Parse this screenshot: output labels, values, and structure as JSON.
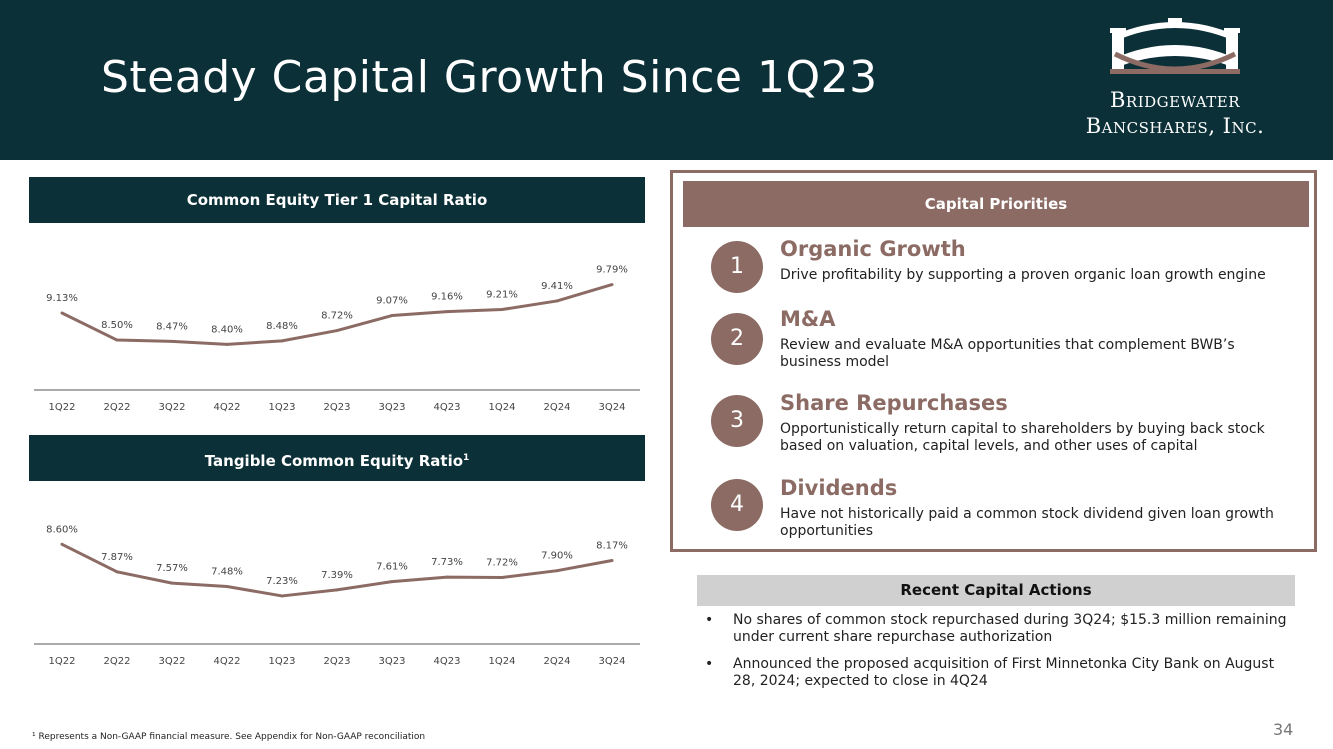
{
  "slide": {
    "title": "Steady Capital Growth Since 1Q23",
    "page_number": "34",
    "footnote": "¹ Represents a Non-GAAP financial measure. See Appendix for Non-GAAP reconciliation"
  },
  "logo": {
    "line1": "Bridgewater",
    "line2": "Bancshares, Inc."
  },
  "colors": {
    "navy": "#0c3038",
    "mauve": "#8b6b64",
    "gray": "#d0d0d0"
  },
  "chart_data": [
    {
      "type": "line",
      "title": "Common Equity Tier 1 Capital Ratio",
      "categories": [
        "1Q22",
        "2Q22",
        "3Q22",
        "4Q22",
        "1Q23",
        "2Q23",
        "3Q23",
        "4Q23",
        "1Q24",
        "2Q24",
        "3Q24"
      ],
      "values": [
        9.13,
        8.5,
        8.47,
        8.4,
        8.48,
        8.72,
        9.07,
        9.16,
        9.21,
        9.41,
        9.79
      ],
      "labels": [
        "9.13%",
        "8.50%",
        "8.47%",
        "8.40%",
        "8.48%",
        "8.72%",
        "9.07%",
        "9.16%",
        "9.21%",
        "9.41%",
        "9.79%"
      ],
      "ylim": [
        7.5,
        10.2
      ],
      "xlabel": "",
      "ylabel": ""
    },
    {
      "type": "line",
      "title": "Tangible Common Equity Ratio",
      "title_superscript": "1",
      "categories": [
        "1Q22",
        "2Q22",
        "3Q22",
        "4Q22",
        "1Q23",
        "2Q23",
        "3Q23",
        "4Q23",
        "1Q24",
        "2Q24",
        "3Q24"
      ],
      "values": [
        8.6,
        7.87,
        7.57,
        7.48,
        7.23,
        7.39,
        7.61,
        7.73,
        7.72,
        7.9,
        8.17
      ],
      "labels": [
        "8.60%",
        "7.87%",
        "7.57%",
        "7.48%",
        "7.23%",
        "7.39%",
        "7.61%",
        "7.73%",
        "7.72%",
        "7.90%",
        "8.17%"
      ],
      "ylim": [
        6.3,
        8.9
      ],
      "xlabel": "",
      "ylabel": ""
    }
  ],
  "capital_priorities": {
    "header": "Capital Priorities",
    "items": [
      {
        "number": "1",
        "title": "Organic Growth",
        "description": "Drive profitability by supporting a proven organic loan growth engine"
      },
      {
        "number": "2",
        "title": "M&A",
        "description": "Review and evaluate M&A opportunities that complement BWB’s business model"
      },
      {
        "number": "3",
        "title": "Share Repurchases",
        "description": "Opportunistically return capital to shareholders by buying back stock based on valuation, capital levels, and other uses of capital"
      },
      {
        "number": "4",
        "title": "Dividends",
        "description": "Have not historically paid a common stock dividend given loan growth opportunities"
      }
    ]
  },
  "recent_actions": {
    "header": "Recent Capital Actions",
    "bullet": "•",
    "items": [
      "No shares of common stock repurchased during 3Q24; $15.3 million remaining under current share repurchase authorization",
      "Announced the proposed acquisition of First Minnetonka City Bank on August 28, 2024; expected to close in 4Q24"
    ]
  }
}
